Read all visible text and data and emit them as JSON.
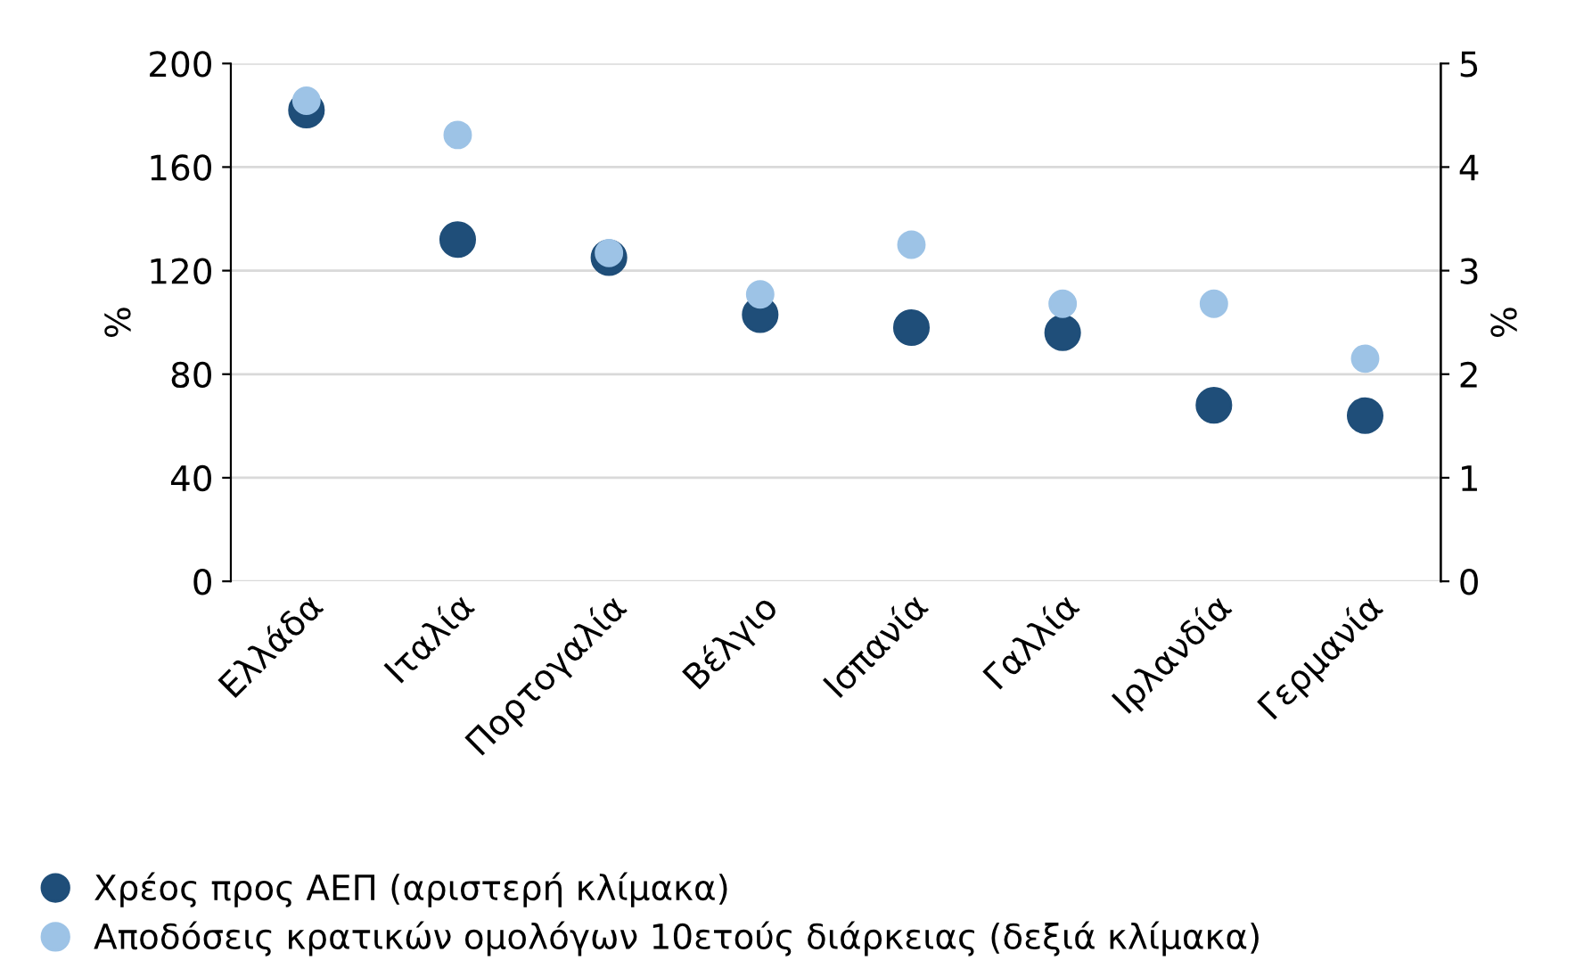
{
  "chart_data": {
    "type": "scatter",
    "categories": [
      "Ελλάδα",
      "Ιταλία",
      "Πορτογαλία",
      "Βέλγιο",
      "Ισπανία",
      "Γαλλία",
      "Ιρλανδία",
      "Γερμανία"
    ],
    "series": [
      {
        "name": "Χρέος προς ΑΕΠ (αριστερή κλίμακα)",
        "color": "#1f4e79",
        "values": [
          182,
          132,
          125,
          103,
          98,
          96,
          68,
          64
        ]
      },
      {
        "name": "Αποδόσεις κρατικών ομολόγων 10ετούς διάρκειας (δεξιά κλίμακα)",
        "color": "#9dc3e6",
        "axis": "y2",
        "values": [
          4.64,
          4.31,
          3.17,
          2.77,
          3.25,
          2.68,
          2.68,
          2.15
        ]
      }
    ],
    "ylabel": "%",
    "y2label": "%",
    "ylim": [
      0,
      200
    ],
    "yticks": [
      0,
      40,
      80,
      120,
      160,
      200
    ],
    "y2lim": [
      0,
      5
    ],
    "y2ticks": [
      0,
      1,
      2,
      3,
      4,
      5
    ],
    "grid": "y",
    "legend": "bottom",
    "marker": "circle"
  }
}
